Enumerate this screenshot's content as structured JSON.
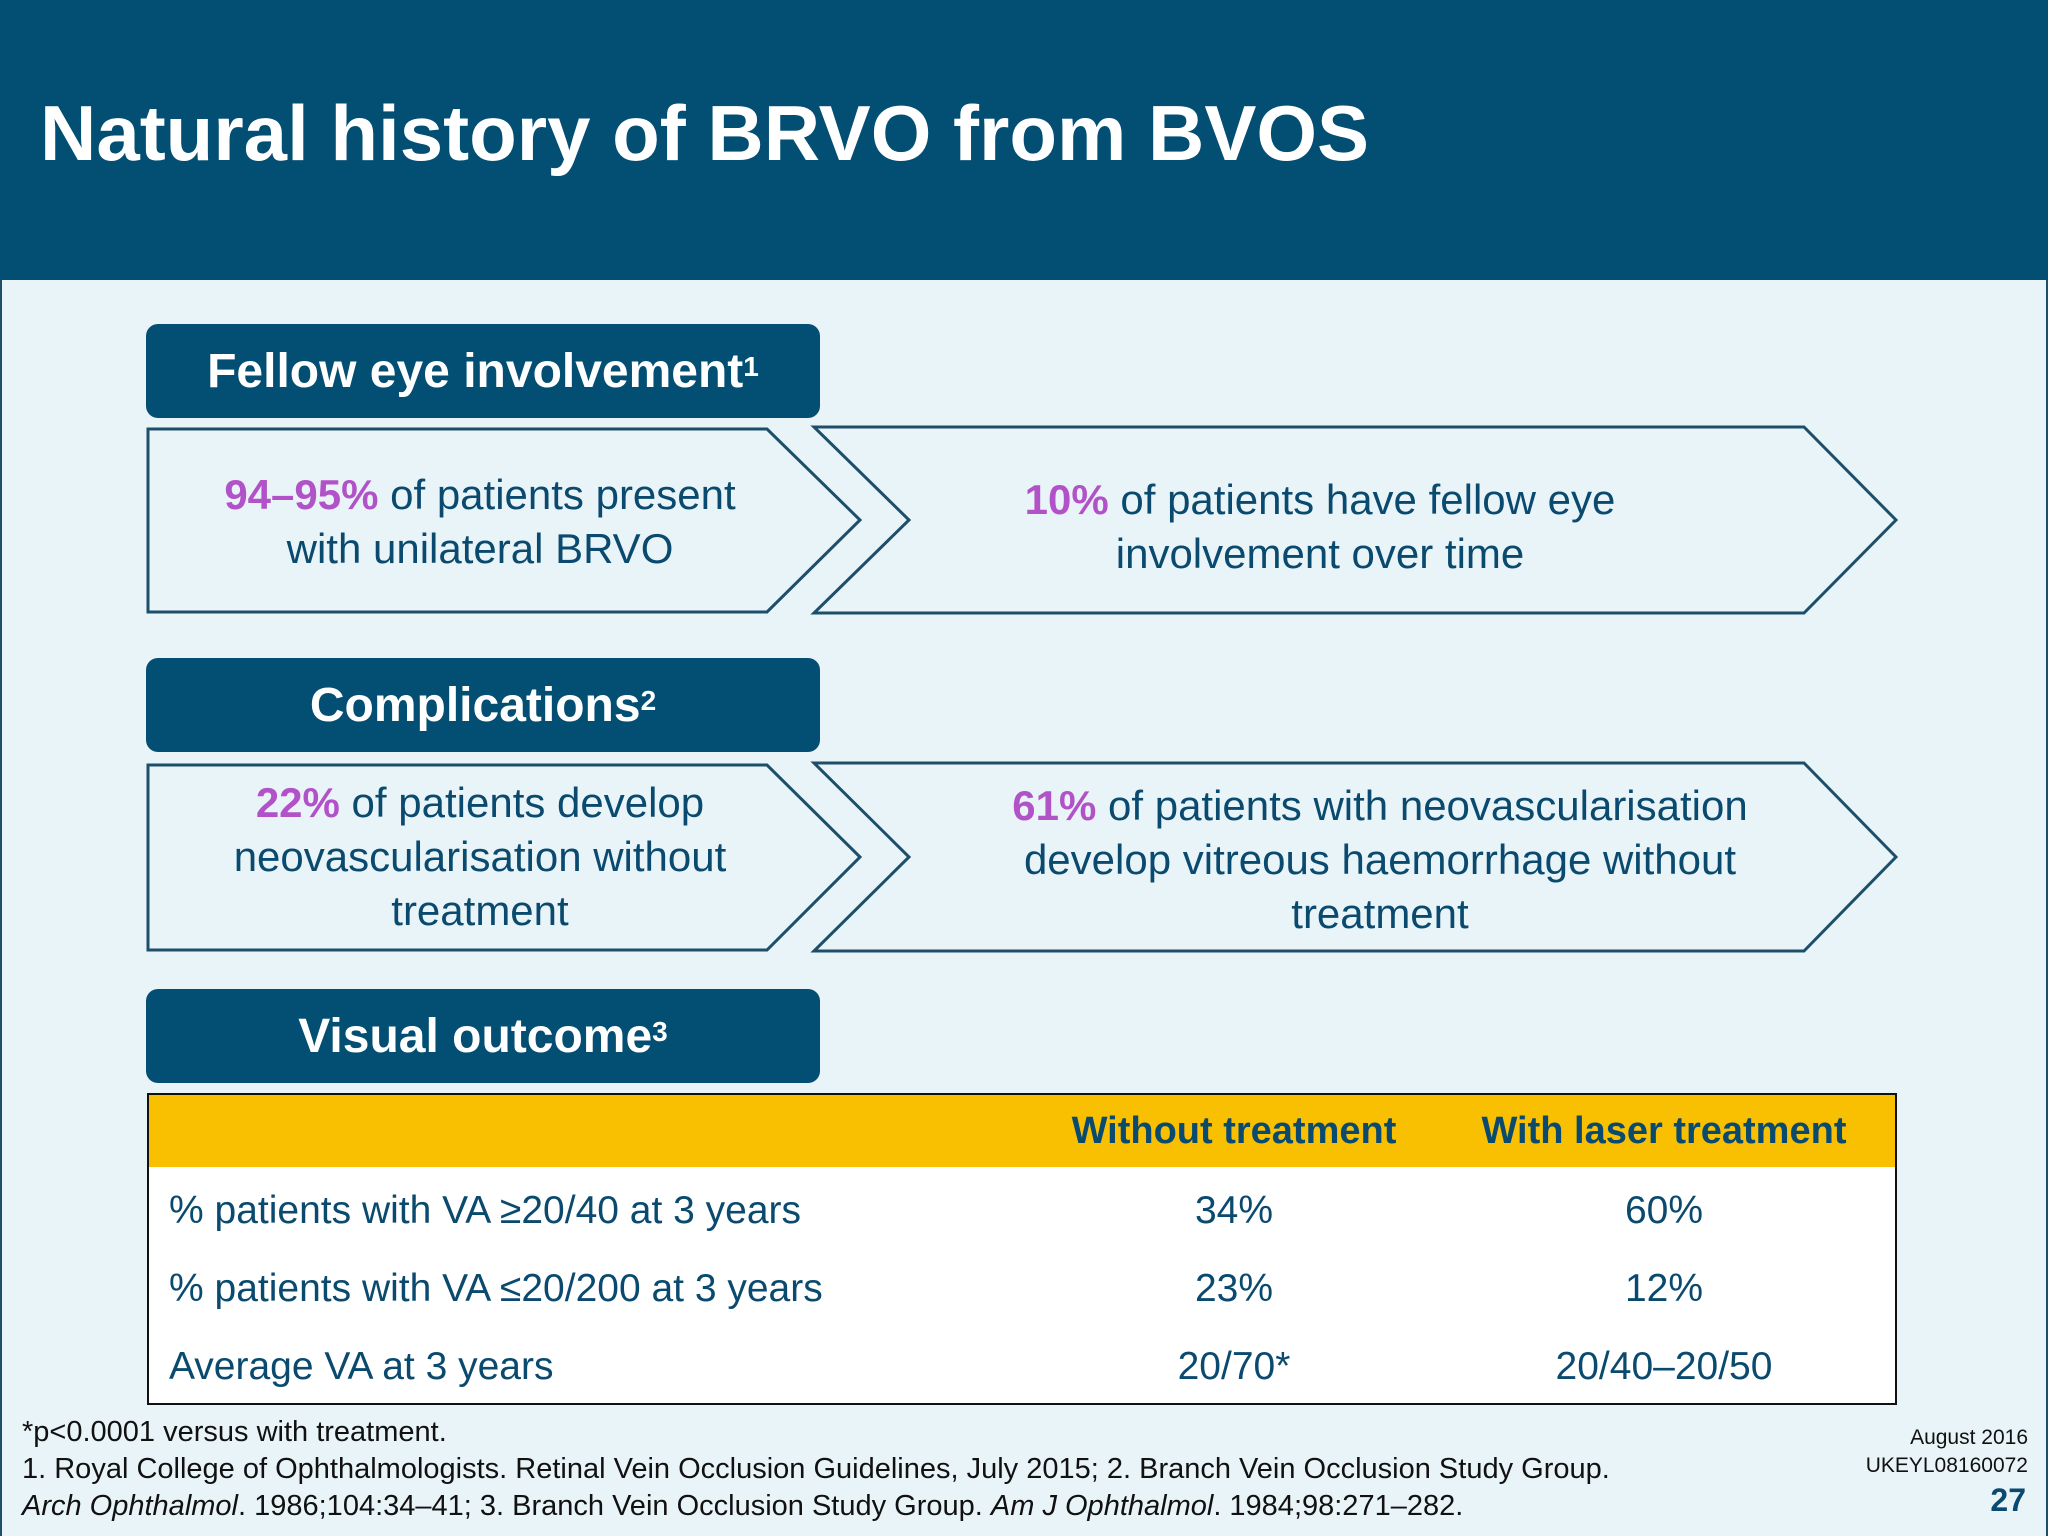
{
  "slide": {
    "title": "Natural history of BRVO from BVOS"
  },
  "sections": {
    "fellow_eye": {
      "heading": "Fellow eye involvement",
      "ref": "1",
      "left_highlight": "94–95%",
      "left_text_1": " of patients present",
      "left_text_2": "with unilateral BRVO",
      "right_highlight": "10%",
      "right_text_1": " of patients have fellow eye",
      "right_text_2": "involvement over time"
    },
    "complications": {
      "heading": "Complications",
      "ref": "2",
      "left_highlight": "22%",
      "left_text_1": " of patients develop",
      "left_text_2": "neovascularisation without",
      "left_text_3": "treatment",
      "right_highlight": "61%",
      "right_text_1": " of patients with neovascularisation",
      "right_text_2": "develop vitreous haemorrhage without",
      "right_text_3": "treatment"
    },
    "visual_outcome": {
      "heading": "Visual outcome",
      "ref": "3"
    }
  },
  "table": {
    "columns": [
      "Without treatment",
      "With laser treatment"
    ],
    "rows": [
      {
        "label": "% patients with VA ≥20/40 at 3 years",
        "values": [
          "34%",
          "60%"
        ]
      },
      {
        "label": "% patients with VA ≤20/200 at 3 years",
        "values": [
          "23%",
          "12%"
        ]
      },
      {
        "label": "Average VA at 3 years",
        "values": [
          "20/70*",
          "20/40–20/50"
        ]
      }
    ]
  },
  "footer": {
    "note": "*p<0.0001 versus with treatment.",
    "ref_line_1": "1. Royal College of Ophthalmologists. Retinal Vein Occlusion Guidelines, July 2015; 2. Branch Vein Occlusion Study Group.",
    "ref_line_2_journal_1": "Arch Ophthalmol",
    "ref_line_2_text_1": ". 1986;104:34–41; 3. Branch Vein Occlusion Study Group. ",
    "ref_line_2_journal_2": "Am J Ophthalmol",
    "ref_line_2_text_2": ". 1984;98:271–282.",
    "date": "August 2016",
    "code": "UKEYL08160072",
    "page_number": "27"
  },
  "colors": {
    "header_bg": "#034e73",
    "content_bg": "#e9f4f8",
    "highlight": "#b252c8",
    "table_header": "#f8c000",
    "text": "#0b4a6f"
  }
}
